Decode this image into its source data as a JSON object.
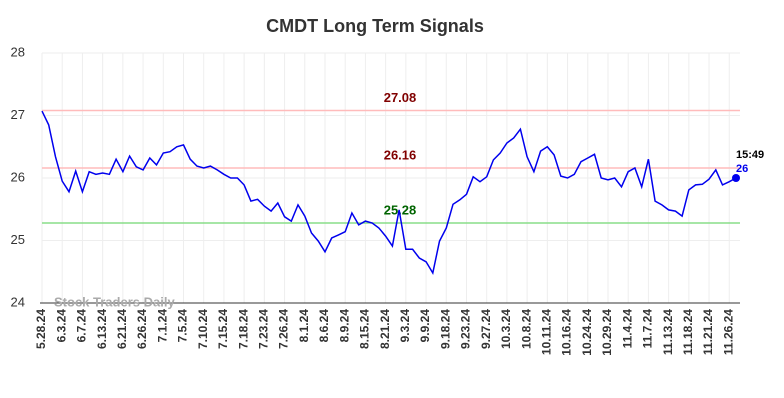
{
  "chart_data": {
    "type": "line",
    "title": "CMDT Long Term Signals",
    "categories": [
      "5.28.24",
      null,
      null,
      "6.3.24",
      null,
      null,
      "6.7.24",
      null,
      null,
      "6.13.24",
      null,
      null,
      "6.21.24",
      null,
      null,
      "6.26.24",
      null,
      null,
      "7.1.24",
      null,
      null,
      "7.5.24",
      null,
      null,
      "7.10.24",
      null,
      null,
      "7.15.24",
      null,
      null,
      "7.18.24",
      null,
      null,
      "7.23.24",
      null,
      null,
      "7.26.24",
      null,
      null,
      "8.1.24",
      null,
      null,
      "8.6.24",
      null,
      null,
      "8.9.24",
      null,
      null,
      "8.15.24",
      null,
      null,
      "8.21.24",
      null,
      null,
      "9.3.24",
      null,
      null,
      "9.9.24",
      null,
      null,
      "9.18.24",
      null,
      null,
      "9.23.24",
      null,
      null,
      "9.27.24",
      null,
      null,
      "10.3.24",
      null,
      null,
      "10.8.24",
      null,
      null,
      "10.11.24",
      null,
      null,
      "10.16.24",
      null,
      null,
      "10.24.24",
      null,
      null,
      "10.29.24",
      null,
      null,
      "11.4.24",
      null,
      null,
      "11.7.24",
      null,
      null,
      "11.13.24",
      null,
      null,
      "11.18.24",
      null,
      null,
      "11.21.24",
      null,
      null,
      "11.26.24",
      null
    ],
    "values": [
      27.07,
      26.85,
      26.34,
      25.95,
      25.78,
      26.11,
      25.78,
      26.1,
      26.06,
      26.08,
      26.06,
      26.3,
      26.1,
      26.35,
      26.18,
      26.13,
      26.32,
      26.21,
      26.4,
      26.42,
      26.5,
      26.53,
      26.3,
      26.19,
      26.16,
      26.19,
      26.13,
      26.06,
      26.0,
      26.0,
      25.89,
      25.63,
      25.66,
      25.55,
      25.47,
      25.6,
      25.38,
      25.31,
      25.57,
      25.39,
      25.12,
      24.99,
      24.82,
      25.04,
      25.09,
      25.14,
      25.44,
      25.25,
      25.31,
      25.28,
      25.2,
      25.07,
      24.91,
      25.49,
      24.86,
      24.86,
      24.72,
      24.66,
      24.48,
      24.99,
      25.2,
      25.58,
      25.65,
      25.74,
      26.02,
      25.94,
      26.02,
      26.29,
      26.4,
      26.56,
      26.64,
      26.78,
      26.34,
      26.1,
      26.43,
      26.5,
      26.37,
      26.03,
      26.0,
      26.06,
      26.26,
      26.32,
      26.38,
      26.0,
      25.97,
      26.0,
      25.86,
      26.1,
      26.16,
      25.86,
      26.3,
      25.63,
      25.57,
      25.49,
      25.47,
      25.39,
      25.81,
      25.89,
      25.9,
      25.98,
      26.13,
      25.89,
      25.94,
      26
    ],
    "color": "#0000ee",
    "ylim": [
      24,
      28
    ],
    "yticks": [
      24,
      25,
      26,
      27,
      28
    ],
    "grid": true,
    "hlines": [
      {
        "value": 27.08,
        "color": "#ffbbbb",
        "label_color": "#800000"
      },
      {
        "value": 26.16,
        "color": "#ffbbbb",
        "label_color": "#800000"
      },
      {
        "value": 25.28,
        "color": "#88dd88",
        "label_color": "#006400"
      }
    ],
    "time_label": "15:49",
    "watermark": "Stock Traders Daily"
  }
}
